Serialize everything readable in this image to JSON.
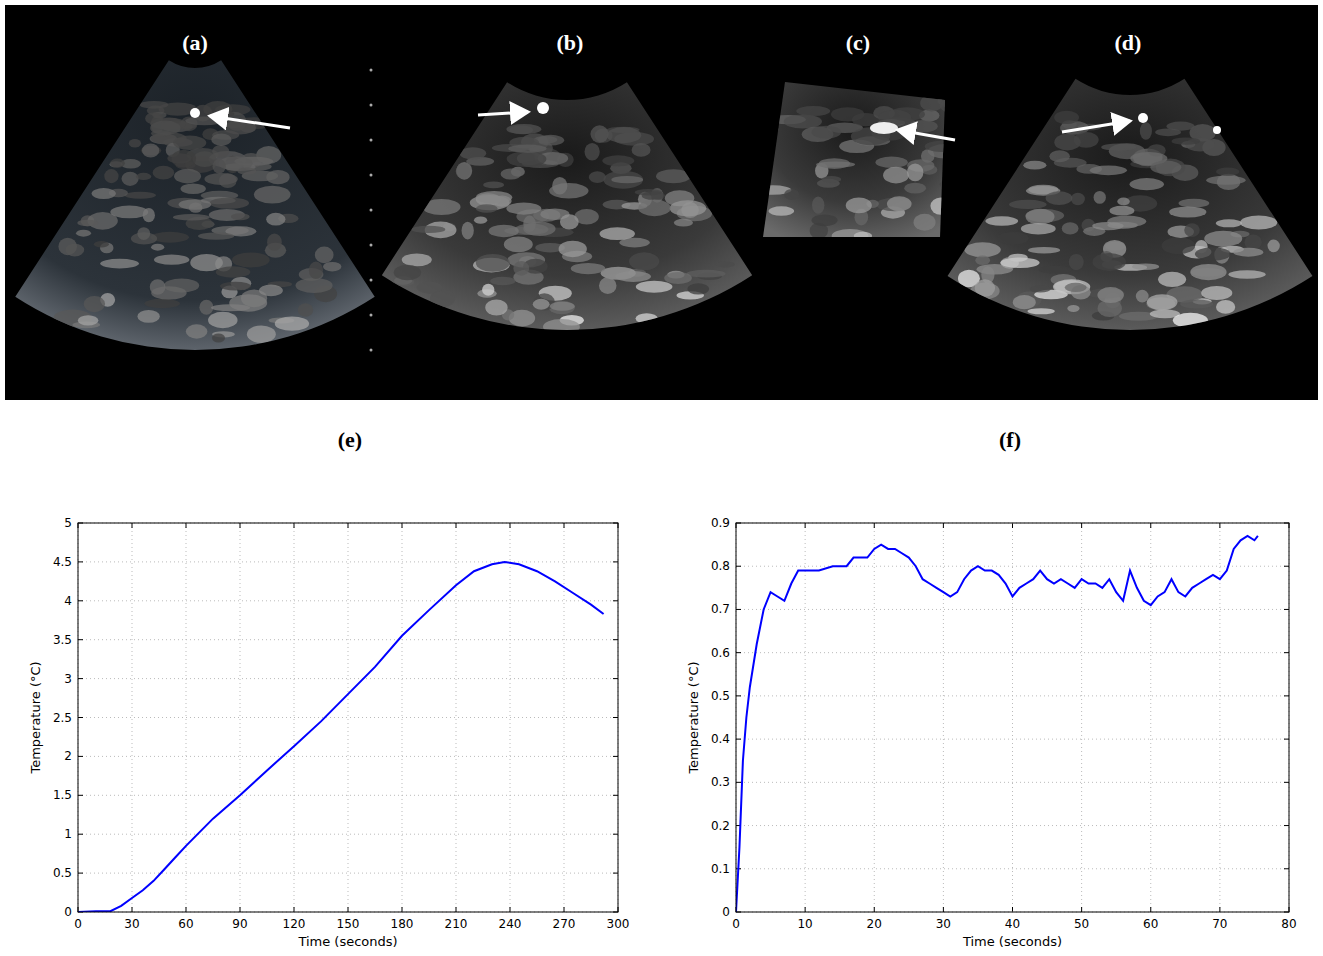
{
  "images": [
    {
      "label": "(a)"
    },
    {
      "label": "(b)"
    },
    {
      "label": "(c)"
    },
    {
      "label": "(d)"
    }
  ],
  "chart_data": [
    {
      "type": "line",
      "title": "(e)",
      "x_label": "Time (seconds)",
      "y_label": "Temperature (°C)",
      "x": [
        0,
        10,
        18,
        24,
        30,
        36,
        42,
        48,
        54,
        60,
        75,
        90,
        105,
        120,
        135,
        150,
        165,
        180,
        195,
        210,
        220,
        230,
        237,
        245,
        255,
        265,
        275,
        285,
        292
      ],
      "values": [
        0,
        0.01,
        0.01,
        0.08,
        0.18,
        0.28,
        0.4,
        0.55,
        0.7,
        0.85,
        1.2,
        1.5,
        1.82,
        2.13,
        2.45,
        2.8,
        3.15,
        3.55,
        3.88,
        4.2,
        4.38,
        4.47,
        4.5,
        4.47,
        4.38,
        4.25,
        4.1,
        3.95,
        3.83
      ],
      "color": "#0000ff",
      "xlim": [
        0,
        300
      ],
      "xticks": [
        0,
        30,
        60,
        90,
        120,
        150,
        180,
        210,
        240,
        270,
        300
      ],
      "ylim": [
        0,
        5
      ],
      "yticks": [
        0,
        0.5,
        1,
        1.5,
        2,
        2.5,
        3,
        3.5,
        4,
        4.5,
        5
      ],
      "grid": true
    },
    {
      "type": "line",
      "title": "(f)",
      "x_label": "Time (seconds)",
      "y_label": "Temperature (°C)",
      "x": [
        0,
        0.5,
        1,
        1.5,
        2,
        3,
        4,
        5,
        6,
        7,
        8,
        9,
        10,
        12,
        14,
        16,
        17,
        19,
        20,
        21,
        22,
        23,
        24,
        25,
        26,
        27,
        28,
        29,
        30,
        31,
        32,
        33,
        34,
        35,
        36,
        37,
        38,
        39,
        40,
        41,
        42,
        43,
        44,
        45,
        46,
        47,
        48,
        49,
        50,
        51,
        52,
        53,
        54,
        55,
        56,
        57,
        58,
        59,
        60,
        61,
        62,
        63,
        64,
        65,
        66,
        67,
        68,
        69,
        70,
        71,
        72,
        73,
        74,
        75,
        75.5
      ],
      "values": [
        0,
        0.15,
        0.35,
        0.45,
        0.52,
        0.62,
        0.7,
        0.74,
        0.73,
        0.72,
        0.76,
        0.79,
        0.79,
        0.79,
        0.8,
        0.8,
        0.82,
        0.82,
        0.84,
        0.85,
        0.84,
        0.84,
        0.83,
        0.82,
        0.8,
        0.77,
        0.76,
        0.75,
        0.74,
        0.73,
        0.74,
        0.77,
        0.79,
        0.8,
        0.79,
        0.79,
        0.78,
        0.76,
        0.73,
        0.75,
        0.76,
        0.77,
        0.79,
        0.77,
        0.76,
        0.77,
        0.76,
        0.75,
        0.77,
        0.76,
        0.76,
        0.75,
        0.77,
        0.74,
        0.72,
        0.79,
        0.75,
        0.72,
        0.71,
        0.73,
        0.74,
        0.77,
        0.74,
        0.73,
        0.75,
        0.76,
        0.77,
        0.78,
        0.77,
        0.79,
        0.84,
        0.86,
        0.87,
        0.86,
        0.87
      ],
      "color": "#0000ff",
      "xlim": [
        0,
        80
      ],
      "xticks": [
        0,
        10,
        20,
        30,
        40,
        50,
        60,
        70,
        80
      ],
      "ylim": [
        0,
        0.9
      ],
      "yticks": [
        0,
        0.1,
        0.2,
        0.3,
        0.4,
        0.5,
        0.6,
        0.7,
        0.8,
        0.9
      ],
      "grid": true
    }
  ]
}
